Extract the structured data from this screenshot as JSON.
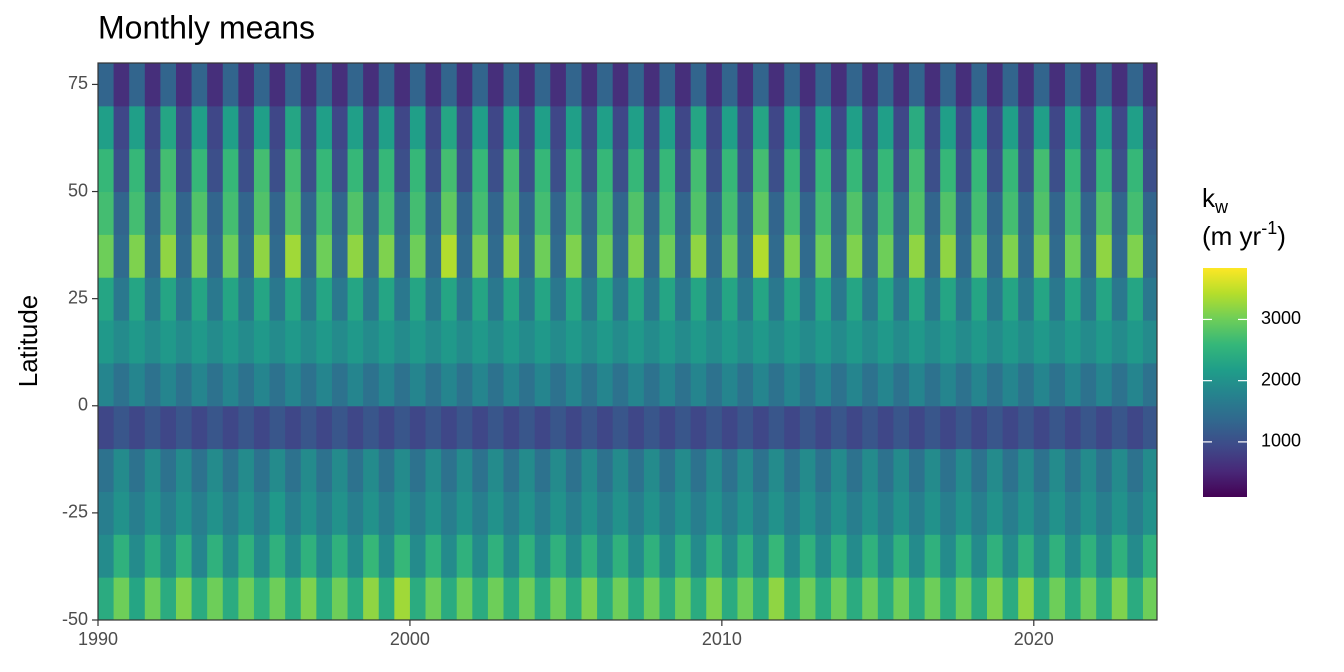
{
  "chart_data": {
    "type": "heatmap",
    "title": "Monthly means",
    "ylabel": "Latitude",
    "legend_title": {
      "base": "k",
      "sub": "w",
      "line2": "(m yr",
      "sup": "-1",
      "close": ")"
    },
    "colormap": "viridis",
    "colorlim": [
      100,
      3840
    ],
    "colorticks": [
      1000,
      2000,
      3000
    ],
    "xlim": [
      1990,
      2023.95
    ],
    "xticks": [
      1990,
      2000,
      2010,
      2020
    ],
    "ylim": [
      -50,
      80
    ],
    "yticks": [
      -50,
      -25,
      0,
      25,
      50,
      75
    ],
    "y": [
      -45,
      -35,
      -25,
      -15,
      -5,
      5,
      15,
      25,
      35,
      45,
      55,
      65,
      75
    ],
    "x": [
      1990,
      1990.5,
      1991,
      1991.5,
      1992,
      1992.5,
      1993,
      1993.5,
      1994,
      1994.5,
      1995,
      1995.5,
      1996,
      1996.5,
      1997,
      1997.5,
      1998,
      1998.5,
      1999,
      1999.5,
      2000,
      2000.5,
      2001,
      2001.5,
      2002,
      2002.5,
      2003,
      2003.5,
      2004,
      2004.5,
      2005,
      2005.5,
      2006,
      2006.5,
      2007,
      2007.5,
      2008,
      2008.5,
      2009,
      2009.5,
      2010,
      2010.5,
      2011,
      2011.5,
      2012,
      2012.5,
      2013,
      2013.5,
      2014,
      2014.5,
      2015,
      2015.5,
      2016,
      2016.5,
      2017,
      2017.5,
      2018,
      2018.5,
      2019,
      2019.5,
      2020,
      2020.5,
      2021,
      2021.5,
      2022,
      2022.5,
      2023,
      2023.5
    ],
    "z": [
      [
        2400,
        1900,
        1700,
        1500,
        900,
        1800,
        2100,
        2300,
        3000,
        2700,
        2600,
        2200,
        1300
      ],
      [
        3000,
        2500,
        2000,
        1900,
        1100,
        1500,
        1900,
        1600,
        1400,
        1300,
        1000,
        900,
        600
      ],
      [
        2300,
        1900,
        1700,
        1500,
        900,
        1800,
        2100,
        2300,
        3100,
        2700,
        2600,
        2200,
        1300
      ],
      [
        3000,
        2400,
        2000,
        1900,
        1100,
        1500,
        1900,
        1600,
        1400,
        1300,
        1000,
        900,
        600
      ],
      [
        2400,
        1900,
        1700,
        1500,
        900,
        1800,
        2100,
        2300,
        3200,
        2800,
        2700,
        2300,
        1300
      ],
      [
        3100,
        2500,
        2000,
        1900,
        1100,
        1500,
        1900,
        1600,
        1400,
        1300,
        1000,
        900,
        600
      ],
      [
        2400,
        1800,
        1700,
        1500,
        900,
        1800,
        2100,
        2300,
        3100,
        2800,
        2600,
        2200,
        1300
      ],
      [
        3000,
        2500,
        2000,
        1900,
        1100,
        1500,
        1900,
        1600,
        1400,
        1300,
        1000,
        900,
        600
      ],
      [
        2400,
        1900,
        1700,
        1500,
        900,
        1800,
        2100,
        2300,
        3000,
        2700,
        2600,
        2200,
        1300
      ],
      [
        3000,
        2500,
        2000,
        1900,
        1100,
        1500,
        1900,
        1600,
        1400,
        1300,
        1000,
        900,
        600
      ],
      [
        2500,
        1900,
        1700,
        1500,
        900,
        1800,
        2100,
        2300,
        3200,
        2800,
        2700,
        2200,
        1300
      ],
      [
        3000,
        2500,
        2100,
        1900,
        1100,
        1500,
        1900,
        1600,
        1400,
        1300,
        1000,
        900,
        600
      ],
      [
        2400,
        1900,
        1700,
        1500,
        900,
        1800,
        2100,
        2300,
        3300,
        2800,
        2700,
        2300,
        1300
      ],
      [
        3100,
        2500,
        2000,
        1900,
        1100,
        1500,
        1900,
        1600,
        1400,
        1300,
        1000,
        900,
        600
      ],
      [
        2400,
        1900,
        1700,
        1500,
        900,
        1800,
        2100,
        2300,
        3000,
        2700,
        2600,
        2200,
        1300
      ],
      [
        3000,
        2500,
        2000,
        1900,
        1100,
        1500,
        1900,
        1600,
        1400,
        1300,
        1000,
        900,
        600
      ],
      [
        2400,
        1900,
        1700,
        1500,
        900,
        1800,
        2100,
        2300,
        3200,
        2800,
        2600,
        2200,
        1300
      ],
      [
        3200,
        2600,
        2000,
        1900,
        1100,
        1500,
        1900,
        1600,
        1400,
        1300,
        1000,
        900,
        600
      ],
      [
        2400,
        1900,
        1700,
        1500,
        900,
        1800,
        2100,
        2300,
        3100,
        2700,
        2600,
        2200,
        1300
      ],
      [
        3300,
        2600,
        2000,
        1900,
        1100,
        1500,
        1900,
        1600,
        1400,
        1300,
        1000,
        900,
        600
      ],
      [
        2400,
        1900,
        1700,
        1500,
        900,
        1800,
        2100,
        2300,
        3000,
        2700,
        2600,
        2200,
        1300
      ],
      [
        3000,
        2500,
        2000,
        1900,
        1100,
        1500,
        1900,
        1600,
        1400,
        1300,
        1000,
        900,
        600
      ],
      [
        2400,
        1900,
        1700,
        1500,
        900,
        1800,
        2100,
        2300,
        3400,
        2900,
        2700,
        2300,
        1300
      ],
      [
        3000,
        2500,
        2000,
        1900,
        1100,
        1500,
        1900,
        1600,
        1400,
        1300,
        1000,
        900,
        600
      ],
      [
        2400,
        1900,
        1700,
        1500,
        900,
        1800,
        2100,
        2300,
        3100,
        2700,
        2600,
        2200,
        1300
      ],
      [
        3000,
        2500,
        2000,
        1900,
        1100,
        1500,
        1900,
        1600,
        1400,
        1300,
        1000,
        900,
        600
      ],
      [
        2400,
        1900,
        1700,
        1500,
        900,
        1800,
        2100,
        2300,
        3200,
        2800,
        2700,
        2200,
        1300
      ],
      [
        3000,
        2500,
        2000,
        1900,
        1100,
        1500,
        1900,
        1600,
        1400,
        1300,
        1000,
        900,
        600
      ],
      [
        2400,
        1900,
        1700,
        1500,
        900,
        1800,
        2100,
        2300,
        3000,
        2700,
        2600,
        2200,
        1300
      ],
      [
        3000,
        2500,
        2000,
        1900,
        1100,
        1500,
        1900,
        1600,
        1400,
        1300,
        1000,
        900,
        600
      ],
      [
        2400,
        1900,
        1700,
        1500,
        900,
        1800,
        2100,
        2300,
        3100,
        2700,
        2600,
        2200,
        1300
      ],
      [
        3100,
        2500,
        2000,
        1900,
        1100,
        1500,
        1900,
        1600,
        1400,
        1300,
        1000,
        900,
        600
      ],
      [
        2400,
        1900,
        1700,
        1500,
        900,
        1800,
        2100,
        2300,
        3000,
        2700,
        2600,
        2200,
        1300
      ],
      [
        3000,
        2500,
        2000,
        1900,
        1100,
        1500,
        1900,
        1600,
        1400,
        1300,
        1000,
        900,
        600
      ],
      [
        2400,
        1900,
        1700,
        1500,
        900,
        1800,
        2100,
        2300,
        3100,
        2800,
        2600,
        2200,
        1300
      ],
      [
        3000,
        2500,
        2000,
        1900,
        1100,
        1500,
        1900,
        1600,
        1400,
        1300,
        1000,
        900,
        600
      ],
      [
        2400,
        1900,
        1700,
        1500,
        900,
        1800,
        2100,
        2300,
        3000,
        2700,
        2600,
        2200,
        1300
      ],
      [
        3000,
        2500,
        2000,
        1900,
        1100,
        1500,
        1900,
        1600,
        1400,
        1300,
        1000,
        900,
        600
      ],
      [
        2400,
        1900,
        1700,
        1500,
        900,
        1800,
        2100,
        2300,
        3200,
        2800,
        2700,
        2300,
        1300
      ],
      [
        3100,
        2500,
        2000,
        1900,
        1100,
        1500,
        1900,
        1600,
        1400,
        1300,
        1000,
        900,
        600
      ],
      [
        2400,
        1900,
        1700,
        1500,
        900,
        1800,
        2100,
        2300,
        3000,
        2700,
        2600,
        2200,
        1300
      ],
      [
        3000,
        2500,
        2000,
        1900,
        1100,
        1500,
        1900,
        1600,
        1400,
        1300,
        1000,
        900,
        600
      ],
      [
        2400,
        1900,
        1700,
        1500,
        900,
        1800,
        2100,
        2300,
        3400,
        2900,
        2700,
        2300,
        1300
      ],
      [
        3200,
        2600,
        2000,
        1900,
        1100,
        1500,
        1900,
        1600,
        1400,
        1300,
        1000,
        900,
        600
      ],
      [
        2400,
        1900,
        1700,
        1500,
        900,
        1800,
        2100,
        2300,
        3100,
        2700,
        2600,
        2200,
        1300
      ],
      [
        3000,
        2500,
        2000,
        1900,
        1100,
        1500,
        1900,
        1600,
        1400,
        1300,
        1000,
        900,
        600
      ],
      [
        2400,
        1900,
        1700,
        1500,
        900,
        1800,
        2100,
        2300,
        3000,
        2700,
        2600,
        2200,
        1300
      ],
      [
        3000,
        2500,
        2000,
        1900,
        1100,
        1500,
        1900,
        1600,
        1400,
        1300,
        1000,
        900,
        600
      ],
      [
        2400,
        1900,
        1700,
        1500,
        900,
        1800,
        2100,
        2300,
        3100,
        2800,
        2600,
        2200,
        1300
      ],
      [
        3000,
        2500,
        2000,
        1900,
        1100,
        1500,
        1900,
        1600,
        1400,
        1300,
        1000,
        900,
        600
      ],
      [
        2400,
        1900,
        1700,
        1500,
        900,
        1800,
        2100,
        2300,
        3000,
        2700,
        2600,
        2200,
        1300
      ],
      [
        3000,
        2500,
        2000,
        1900,
        1100,
        1500,
        1900,
        1600,
        1400,
        1300,
        1000,
        900,
        600
      ],
      [
        2400,
        1900,
        1700,
        1500,
        900,
        1800,
        2100,
        2300,
        3200,
        2800,
        2700,
        2400,
        1300
      ],
      [
        3000,
        2500,
        2000,
        1900,
        1100,
        1500,
        1900,
        1600,
        1400,
        1300,
        1000,
        900,
        600
      ],
      [
        2400,
        1900,
        1700,
        1500,
        900,
        1800,
        2100,
        2300,
        3200,
        2800,
        2600,
        2200,
        1300
      ],
      [
        3000,
        2500,
        2000,
        1900,
        1100,
        1500,
        1900,
        1600,
        1400,
        1300,
        1000,
        900,
        600
      ],
      [
        2400,
        1900,
        1700,
        1500,
        900,
        1800,
        2100,
        2300,
        3000,
        2700,
        2600,
        2200,
        1300
      ],
      [
        3100,
        2500,
        2000,
        1900,
        1100,
        1500,
        1900,
        1600,
        1400,
        1300,
        1000,
        900,
        600
      ],
      [
        2400,
        1900,
        1700,
        1500,
        900,
        1800,
        2100,
        2300,
        3100,
        2700,
        2600,
        2200,
        1300
      ],
      [
        3200,
        2500,
        2000,
        1900,
        1100,
        1500,
        1900,
        1600,
        1400,
        1300,
        1000,
        900,
        600
      ],
      [
        2400,
        1900,
        1700,
        1500,
        900,
        1800,
        2100,
        2300,
        3100,
        2800,
        2700,
        2200,
        1300
      ],
      [
        3000,
        2500,
        2000,
        1900,
        1100,
        1500,
        1900,
        1600,
        1400,
        1300,
        1000,
        900,
        600
      ],
      [
        2400,
        1900,
        1700,
        1500,
        900,
        1800,
        2100,
        2300,
        3000,
        2700,
        2600,
        2200,
        1300
      ],
      [
        3000,
        2500,
        2000,
        1900,
        1100,
        1500,
        1900,
        1600,
        1400,
        1300,
        1000,
        900,
        600
      ],
      [
        2400,
        1900,
        1700,
        1500,
        900,
        1800,
        2100,
        2300,
        3200,
        2800,
        2600,
        2200,
        1300
      ],
      [
        3100,
        2500,
        2000,
        1900,
        1100,
        1500,
        1900,
        1600,
        1400,
        1300,
        1000,
        900,
        600
      ],
      [
        2400,
        1900,
        1700,
        1500,
        900,
        1800,
        2100,
        2300,
        3100,
        2700,
        2600,
        2200,
        1300
      ],
      [
        3000,
        2500,
        2000,
        1900,
        1100,
        1500,
        1900,
        1600,
        1400,
        1300,
        1000,
        900,
        600
      ]
    ]
  }
}
